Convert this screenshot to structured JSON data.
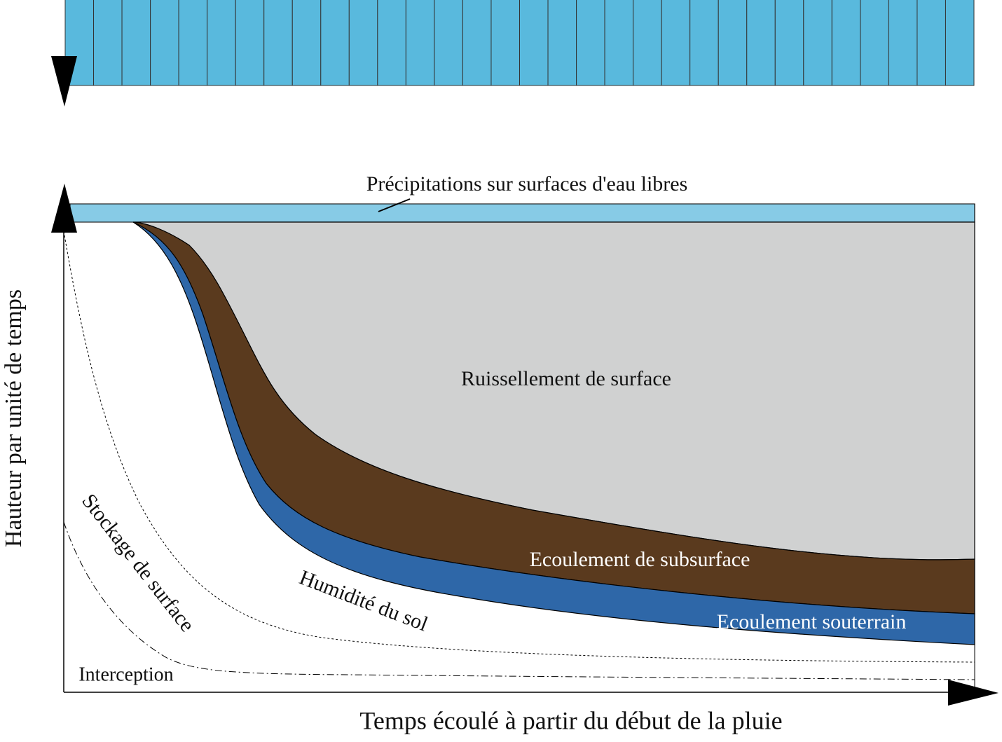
{
  "labels": {
    "precipitation_free_water": "Précipitations sur surfaces d'eau libres",
    "surface_runoff": "Ruissellement de surface",
    "subsurface_flow": "Ecoulement de subsurface",
    "groundwater_flow": "Ecoulement souterrain",
    "soil_moisture": "Humidité du sol",
    "surface_storage": "Stockage de surface",
    "interception": "Interception",
    "x_axis": "Temps écoulé à partir du début de la pluie",
    "y_axis": "Hauteur par unité de temps"
  }
}
